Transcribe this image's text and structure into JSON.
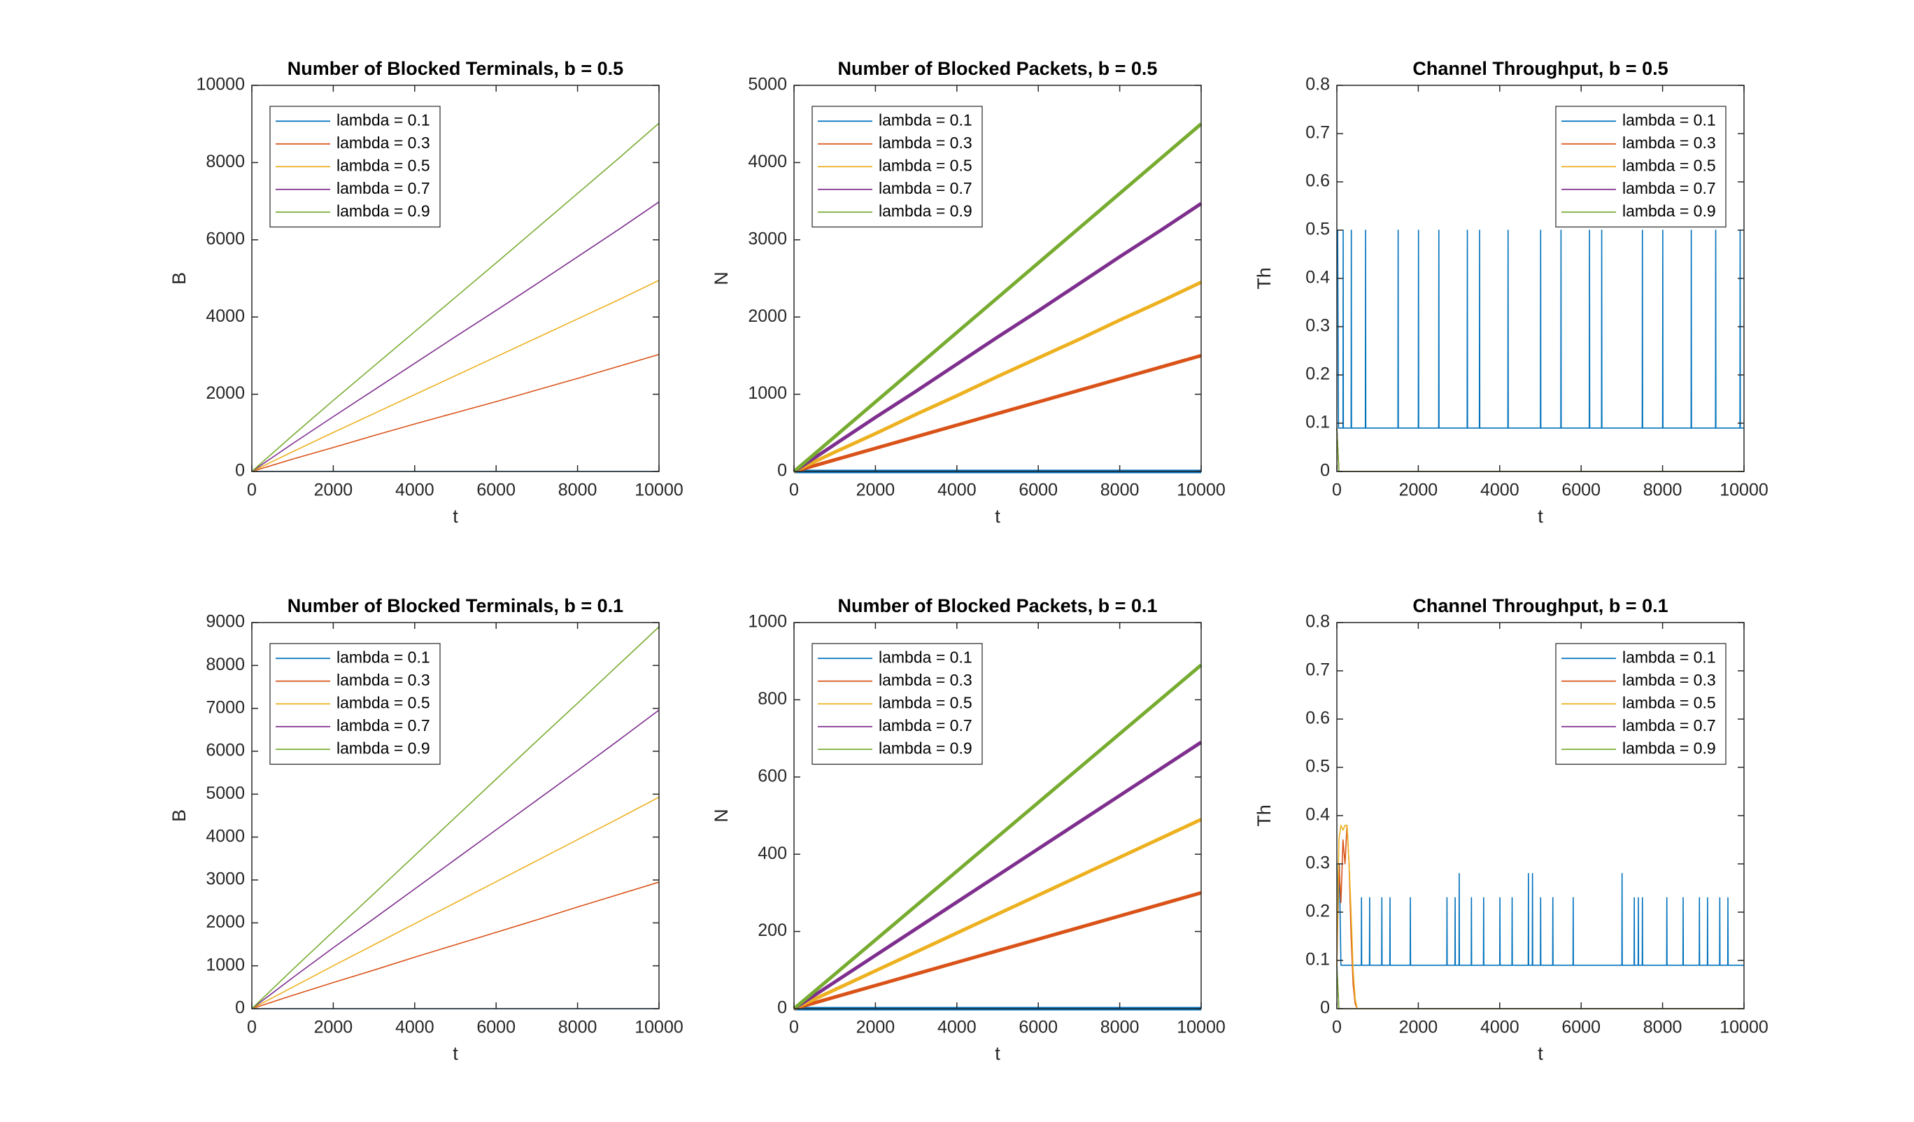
{
  "chart_data": [
    {
      "type": "line",
      "title": "Number of Blocked Terminals, b = 0.5",
      "xlabel": "t",
      "ylabel": "B",
      "legend": "northwest",
      "x": [
        0,
        1000,
        2000,
        3000,
        4000,
        5000,
        6000,
        7000,
        8000,
        9000,
        10000
      ],
      "xlim": [
        0,
        10000
      ],
      "xticks": [
        0,
        2000,
        4000,
        6000,
        8000,
        10000
      ],
      "ylim": [
        0,
        10000
      ],
      "yticks": [
        0,
        2000,
        4000,
        6000,
        8000,
        10000
      ],
      "series": [
        {
          "name": "lambda = 0.1",
          "color": "#0072BD",
          "values": [
            0,
            0,
            0,
            0,
            0,
            0,
            0,
            0,
            0,
            0,
            0
          ]
        },
        {
          "name": "lambda = 0.3",
          "color": "#D95319",
          "values": [
            0,
            320,
            620,
            930,
            1230,
            1520,
            1810,
            2110,
            2410,
            2720,
            3030
          ]
        },
        {
          "name": "lambda = 0.5",
          "color": "#EDB120",
          "values": [
            0,
            510,
            1010,
            1500,
            1990,
            2480,
            2970,
            3460,
            3950,
            4440,
            4950
          ]
        },
        {
          "name": "lambda = 0.7",
          "color": "#7E2F8E",
          "values": [
            0,
            720,
            1420,
            2110,
            2800,
            3490,
            4170,
            4860,
            5560,
            6260,
            6980
          ]
        },
        {
          "name": "lambda = 0.9",
          "color": "#77AC30",
          "values": [
            0,
            930,
            1840,
            2730,
            3620,
            4510,
            5400,
            6300,
            7200,
            8100,
            9020
          ]
        }
      ]
    },
    {
      "type": "line",
      "title": "Number of Blocked Packets, b = 0.5",
      "xlabel": "t",
      "ylabel": "N",
      "legend": "northwest",
      "x": [
        0,
        1000,
        2000,
        3000,
        4000,
        5000,
        6000,
        7000,
        8000,
        9000,
        10000
      ],
      "xlim": [
        0,
        10000
      ],
      "xticks": [
        0,
        2000,
        4000,
        6000,
        8000,
        10000
      ],
      "ylim": [
        0,
        5000
      ],
      "yticks": [
        0,
        1000,
        2000,
        3000,
        4000,
        5000
      ],
      "series": [
        {
          "name": "lambda = 0.1",
          "color": "#0072BD",
          "values": [
            0,
            0,
            0,
            0,
            0,
            0,
            0,
            0,
            0,
            0,
            0
          ]
        },
        {
          "name": "lambda = 0.3",
          "color": "#D95319",
          "values": [
            0,
            150,
            300,
            450,
            600,
            750,
            900,
            1050,
            1200,
            1350,
            1500
          ]
        },
        {
          "name": "lambda = 0.5",
          "color": "#EDB120",
          "values": [
            0,
            250,
            490,
            740,
            980,
            1230,
            1470,
            1710,
            1960,
            2200,
            2450
          ]
        },
        {
          "name": "lambda = 0.7",
          "color": "#7E2F8E",
          "values": [
            0,
            350,
            700,
            1040,
            1390,
            1740,
            2080,
            2430,
            2780,
            3120,
            3470
          ]
        },
        {
          "name": "lambda = 0.9",
          "color": "#77AC30",
          "values": [
            0,
            450,
            900,
            1350,
            1800,
            2250,
            2700,
            3150,
            3600,
            4050,
            4500
          ]
        }
      ]
    },
    {
      "type": "line",
      "title": "Channel Throughput, b = 0.5",
      "xlabel": "t",
      "ylabel": "Th",
      "legend": "northeast",
      "xlim": [
        0,
        10000
      ],
      "xticks": [
        0,
        2000,
        4000,
        6000,
        8000,
        10000
      ],
      "ylim": [
        0,
        0.8
      ],
      "yticks": [
        0,
        0.1,
        0.2,
        0.3,
        0.4,
        0.5,
        0.6,
        0.7,
        0.8
      ],
      "series": [
        {
          "name": "lambda = 0.1",
          "color": "#0072BD",
          "x": [
            0,
            20,
            40,
            150,
            155,
            160,
            350,
            355,
            360,
            700,
            705,
            710,
            1500,
            1505,
            1510,
            2000,
            2005,
            2010,
            2500,
            2505,
            2510,
            3200,
            3205,
            3210,
            3500,
            3505,
            3510,
            4200,
            4205,
            4210,
            5000,
            5005,
            5010,
            5500,
            5505,
            5510,
            6200,
            6205,
            6210,
            6500,
            6505,
            6510,
            7500,
            7505,
            7510,
            8000,
            8005,
            8010,
            8700,
            8705,
            8710,
            9300,
            9305,
            9310,
            9900,
            9905,
            9910,
            10000
          ],
          "values": [
            0.5,
            0.5,
            0.09,
            0.09,
            0.5,
            0.09,
            0.09,
            0.5,
            0.09,
            0.09,
            0.5,
            0.09,
            0.09,
            0.5,
            0.09,
            0.09,
            0.5,
            0.09,
            0.09,
            0.5,
            0.09,
            0.09,
            0.5,
            0.09,
            0.09,
            0.5,
            0.09,
            0.09,
            0.5,
            0.09,
            0.09,
            0.5,
            0.09,
            0.09,
            0.5,
            0.09,
            0.09,
            0.5,
            0.09,
            0.09,
            0.5,
            0.09,
            0.09,
            0.5,
            0.09,
            0.09,
            0.5,
            0.09,
            0.09,
            0.5,
            0.09,
            0.09,
            0.5,
            0.09,
            0.09,
            0.5,
            0.09,
            0.09
          ]
        },
        {
          "name": "lambda = 0.3",
          "color": "#D95319",
          "x": [
            0,
            50,
            10000
          ],
          "values": [
            0.09,
            0,
            0
          ]
        },
        {
          "name": "lambda = 0.5",
          "color": "#EDB120",
          "x": [
            0,
            50,
            10000
          ],
          "values": [
            0.09,
            0,
            0
          ]
        },
        {
          "name": "lambda = 0.7",
          "color": "#7E2F8E",
          "x": [
            0,
            50,
            10000
          ],
          "values": [
            0.09,
            0,
            0
          ]
        },
        {
          "name": "lambda = 0.9",
          "color": "#77AC30",
          "x": [
            0,
            50,
            10000
          ],
          "values": [
            0.09,
            0,
            0
          ]
        }
      ]
    },
    {
      "type": "line",
      "title": "Number of Blocked Terminals, b = 0.1",
      "xlabel": "t",
      "ylabel": "B",
      "legend": "northwest",
      "x": [
        0,
        1000,
        2000,
        3000,
        4000,
        5000,
        6000,
        7000,
        8000,
        9000,
        10000
      ],
      "xlim": [
        0,
        10000
      ],
      "xticks": [
        0,
        2000,
        4000,
        6000,
        8000,
        10000
      ],
      "ylim": [
        0,
        9000
      ],
      "yticks": [
        0,
        1000,
        2000,
        3000,
        4000,
        5000,
        6000,
        7000,
        8000,
        9000
      ],
      "series": [
        {
          "name": "lambda = 0.1",
          "color": "#0072BD",
          "values": [
            0,
            0,
            0,
            0,
            0,
            0,
            0,
            0,
            0,
            0,
            0
          ]
        },
        {
          "name": "lambda = 0.3",
          "color": "#D95319",
          "values": [
            0,
            310,
            610,
            900,
            1200,
            1490,
            1780,
            2070,
            2370,
            2660,
            2950
          ]
        },
        {
          "name": "lambda = 0.5",
          "color": "#EDB120",
          "values": [
            0,
            500,
            1000,
            1490,
            1980,
            2470,
            2960,
            3450,
            3940,
            4430,
            4930
          ]
        },
        {
          "name": "lambda = 0.7",
          "color": "#7E2F8E",
          "values": [
            0,
            720,
            1420,
            2100,
            2790,
            3480,
            4170,
            4860,
            5550,
            6250,
            6960
          ]
        },
        {
          "name": "lambda = 0.9",
          "color": "#77AC30",
          "values": [
            0,
            910,
            1800,
            2680,
            3570,
            4460,
            5350,
            6240,
            7120,
            8010,
            8900
          ]
        }
      ]
    },
    {
      "type": "line",
      "title": "Number of Blocked Packets, b = 0.1",
      "xlabel": "t",
      "ylabel": "N",
      "legend": "northwest",
      "x": [
        0,
        1000,
        2000,
        3000,
        4000,
        5000,
        6000,
        7000,
        8000,
        9000,
        10000
      ],
      "xlim": [
        0,
        10000
      ],
      "xticks": [
        0,
        2000,
        4000,
        6000,
        8000,
        10000
      ],
      "ylim": [
        0,
        1000
      ],
      "yticks": [
        0,
        200,
        400,
        600,
        800,
        1000
      ],
      "series": [
        {
          "name": "lambda = 0.1",
          "color": "#0072BD",
          "values": [
            0,
            0,
            0,
            0,
            0,
            0,
            0,
            0,
            0,
            0,
            0
          ]
        },
        {
          "name": "lambda = 0.3",
          "color": "#D95319",
          "values": [
            0,
            30,
            60,
            90,
            120,
            150,
            180,
            210,
            240,
            270,
            300
          ]
        },
        {
          "name": "lambda = 0.5",
          "color": "#EDB120",
          "values": [
            0,
            49,
            98,
            147,
            196,
            245,
            294,
            343,
            392,
            441,
            490
          ]
        },
        {
          "name": "lambda = 0.7",
          "color": "#7E2F8E",
          "values": [
            0,
            69,
            138,
            207,
            276,
            345,
            414,
            483,
            552,
            621,
            690
          ]
        },
        {
          "name": "lambda = 0.9",
          "color": "#77AC30",
          "values": [
            0,
            89,
            178,
            267,
            356,
            445,
            534,
            623,
            712,
            801,
            890
          ]
        }
      ]
    },
    {
      "type": "line",
      "title": "Channel Throughput, b = 0.1",
      "xlabel": "t",
      "ylabel": "Th",
      "legend": "northeast",
      "xlim": [
        0,
        10000
      ],
      "xticks": [
        0,
        2000,
        4000,
        6000,
        8000,
        10000
      ],
      "ylim": [
        0,
        0.8
      ],
      "yticks": [
        0,
        0.1,
        0.2,
        0.3,
        0.4,
        0.5,
        0.6,
        0.7,
        0.8
      ],
      "series": [
        {
          "name": "lambda = 0.1",
          "color": "#0072BD",
          "x": [
            0,
            30,
            60,
            100,
            200,
            600,
            605,
            610,
            800,
            805,
            810,
            1100,
            1105,
            1110,
            1300,
            1305,
            1310,
            1800,
            1805,
            1810,
            2700,
            2705,
            2710,
            2900,
            2905,
            2910,
            3000,
            3005,
            3010,
            3300,
            3305,
            3310,
            3600,
            3605,
            3610,
            4000,
            4005,
            4010,
            4300,
            4305,
            4310,
            4700,
            4705,
            4710,
            4800,
            4805,
            4810,
            5000,
            5005,
            5010,
            5300,
            5305,
            5310,
            5800,
            5805,
            5810,
            7000,
            7005,
            7010,
            7300,
            7305,
            7310,
            7400,
            7405,
            7410,
            7500,
            7505,
            7510,
            8100,
            8105,
            8110,
            8500,
            8505,
            8510,
            8900,
            8905,
            8910,
            9100,
            9105,
            9110,
            9400,
            9405,
            9410,
            9600,
            9605,
            9610,
            10000
          ],
          "values": [
            0.3,
            0.2,
            0.3,
            0.09,
            0.09,
            0.09,
            0.23,
            0.09,
            0.09,
            0.23,
            0.09,
            0.09,
            0.23,
            0.09,
            0.09,
            0.23,
            0.09,
            0.09,
            0.23,
            0.09,
            0.09,
            0.23,
            0.09,
            0.09,
            0.23,
            0.09,
            0.09,
            0.28,
            0.09,
            0.09,
            0.23,
            0.09,
            0.09,
            0.23,
            0.09,
            0.09,
            0.23,
            0.09,
            0.09,
            0.23,
            0.09,
            0.09,
            0.28,
            0.09,
            0.09,
            0.28,
            0.09,
            0.09,
            0.23,
            0.09,
            0.09,
            0.23,
            0.09,
            0.09,
            0.23,
            0.09,
            0.09,
            0.28,
            0.09,
            0.09,
            0.23,
            0.09,
            0.09,
            0.23,
            0.09,
            0.09,
            0.23,
            0.09,
            0.09,
            0.23,
            0.09,
            0.09,
            0.23,
            0.09,
            0.09,
            0.23,
            0.09,
            0.09,
            0.23,
            0.09,
            0.09,
            0.23,
            0.09,
            0.09,
            0.23,
            0.09,
            0.09
          ]
        },
        {
          "name": "lambda = 0.3",
          "color": "#D95319",
          "x": [
            0,
            50,
            100,
            150,
            200,
            250,
            300,
            350,
            400,
            450,
            500,
            10000
          ],
          "values": [
            0.09,
            0.3,
            0.22,
            0.35,
            0.3,
            0.38,
            0.3,
            0.15,
            0.05,
            0.01,
            0,
            0
          ]
        },
        {
          "name": "lambda = 0.5",
          "color": "#EDB120",
          "x": [
            0,
            50,
            100,
            150,
            200,
            250,
            300,
            350,
            400,
            450,
            500,
            10000
          ],
          "values": [
            0.09,
            0.35,
            0.38,
            0.37,
            0.38,
            0.38,
            0.3,
            0.2,
            0.08,
            0.02,
            0,
            0
          ]
        },
        {
          "name": "lambda = 0.7",
          "color": "#7E2F8E",
          "x": [
            0,
            50,
            10000
          ],
          "values": [
            0.09,
            0,
            0
          ]
        },
        {
          "name": "lambda = 0.9",
          "color": "#77AC30",
          "x": [
            0,
            50,
            10000
          ],
          "values": [
            0.09,
            0,
            0
          ]
        }
      ]
    }
  ]
}
